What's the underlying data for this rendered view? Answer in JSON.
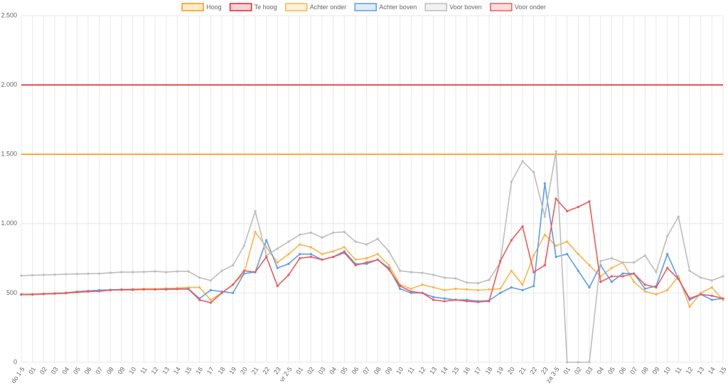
{
  "chart_data": {
    "type": "line",
    "categories": [
      "do 1-5",
      "01",
      "02",
      "03",
      "04",
      "05",
      "06",
      "07",
      "08",
      "09",
      "10",
      "11",
      "12",
      "13",
      "14",
      "15",
      "16",
      "17",
      "18",
      "19",
      "20",
      "21",
      "22",
      "23",
      "vr 2-5",
      "01",
      "02",
      "03",
      "04",
      "05",
      "06",
      "07",
      "08",
      "09",
      "10",
      "11",
      "12",
      "13",
      "14",
      "15",
      "16",
      "17",
      "18",
      "19",
      "20",
      "21",
      "22",
      "23",
      "za 3-5",
      "01",
      "02",
      "03",
      "04",
      "05",
      "06",
      "07",
      "08",
      "09",
      "10",
      "11",
      "12",
      "13",
      "14",
      "15"
    ],
    "series": [
      {
        "name": "Hoog",
        "color": "#ff9900",
        "points": false,
        "values": [
          1500,
          1500,
          1500,
          1500,
          1500,
          1500,
          1500,
          1500,
          1500,
          1500,
          1500,
          1500,
          1500,
          1500,
          1500,
          1500,
          1500,
          1500,
          1500,
          1500,
          1500,
          1500,
          1500,
          1500,
          1500,
          1500,
          1500,
          1500,
          1500,
          1500,
          1500,
          1500,
          1500,
          1500,
          1500,
          1500,
          1500,
          1500,
          1500,
          1500,
          1500,
          1500,
          1500,
          1500,
          1500,
          1500,
          1500,
          1500,
          1500,
          1500,
          1500,
          1500,
          1500,
          1500,
          1500,
          1500,
          1500,
          1500,
          1500,
          1500,
          1500,
          1500,
          1500,
          1500
        ]
      },
      {
        "name": "Te hoog",
        "color": "#e8202a",
        "points": false,
        "values": [
          2000,
          2000,
          2000,
          2000,
          2000,
          2000,
          2000,
          2000,
          2000,
          2000,
          2000,
          2000,
          2000,
          2000,
          2000,
          2000,
          2000,
          2000,
          2000,
          2000,
          2000,
          2000,
          2000,
          2000,
          2000,
          2000,
          2000,
          2000,
          2000,
          2000,
          2000,
          2000,
          2000,
          2000,
          2000,
          2000,
          2000,
          2000,
          2000,
          2000,
          2000,
          2000,
          2000,
          2000,
          2000,
          2000,
          2000,
          2000,
          2000,
          2000,
          2000,
          2000,
          2000,
          2000,
          2000,
          2000,
          2000,
          2000,
          2000,
          2000,
          2000,
          2000,
          2000,
          2000
        ]
      },
      {
        "name": "Achter onder",
        "color": "#f9b54a",
        "points": true,
        "values": [
          490,
          492,
          495,
          498,
          502,
          510,
          515,
          518,
          522,
          525,
          528,
          530,
          530,
          532,
          535,
          540,
          540,
          450,
          500,
          560,
          640,
          940,
          830,
          720,
          780,
          850,
          830,
          780,
          800,
          830,
          740,
          750,
          780,
          700,
          560,
          530,
          560,
          540,
          520,
          530,
          525,
          520,
          525,
          530,
          660,
          560,
          770,
          920,
          840,
          870,
          780,
          700,
          620,
          680,
          720,
          580,
          510,
          490,
          520,
          620,
          400,
          500,
          540,
          450
        ]
      },
      {
        "name": "Achter boven",
        "color": "#5a9ef0",
        "points": true,
        "values": [
          490,
          490,
          493,
          496,
          500,
          508,
          515,
          520,
          522,
          525,
          525,
          525,
          525,
          528,
          528,
          530,
          460,
          520,
          510,
          500,
          640,
          650,
          880,
          680,
          710,
          780,
          780,
          740,
          760,
          800,
          710,
          710,
          740,
          680,
          530,
          500,
          500,
          470,
          460,
          450,
          450,
          440,
          445,
          500,
          540,
          520,
          550,
          1290,
          760,
          780,
          660,
          540,
          700,
          580,
          640,
          640,
          530,
          550,
          780,
          600,
          450,
          490,
          450,
          460
        ]
      },
      {
        "name": "Voor boven",
        "color": "#bdbdbd",
        "points": true,
        "values": [
          625,
          628,
          630,
          632,
          635,
          637,
          639,
          640,
          645,
          650,
          650,
          652,
          655,
          650,
          655,
          655,
          610,
          590,
          660,
          700,
          840,
          1090,
          770,
          820,
          870,
          920,
          935,
          900,
          935,
          940,
          870,
          850,
          890,
          800,
          660,
          650,
          645,
          630,
          610,
          605,
          575,
          570,
          595,
          720,
          1300,
          1450,
          1370,
          1050,
          1520,
          0,
          0,
          0,
          730,
          750,
          720,
          720,
          770,
          650,
          910,
          1050,
          660,
          610,
          590,
          620
        ]
      },
      {
        "name": "Voor onder",
        "color": "#ee5a5a",
        "points": true,
        "values": [
          488,
          488,
          492,
          495,
          498,
          505,
          510,
          512,
          520,
          522,
          522,
          525,
          525,
          525,
          528,
          528,
          450,
          430,
          500,
          560,
          660,
          650,
          760,
          550,
          630,
          750,
          760,
          740,
          760,
          790,
          700,
          720,
          740,
          670,
          550,
          510,
          500,
          450,
          440,
          450,
          440,
          435,
          440,
          730,
          880,
          980,
          650,
          700,
          1180,
          1090,
          1120,
          1160,
          580,
          620,
          620,
          640,
          560,
          540,
          680,
          600,
          460,
          490,
          480,
          460
        ]
      }
    ],
    "ylim": [
      0,
      2500
    ],
    "yticks": [
      0,
      500,
      {
        "value": 1000,
        "label": "1.000"
      },
      {
        "value": 1500,
        "label": "1.500"
      },
      {
        "value": 2000,
        "label": "2.000"
      },
      {
        "value": 2500,
        "label": "2.500"
      }
    ],
    "grid": true,
    "legend": "top"
  }
}
